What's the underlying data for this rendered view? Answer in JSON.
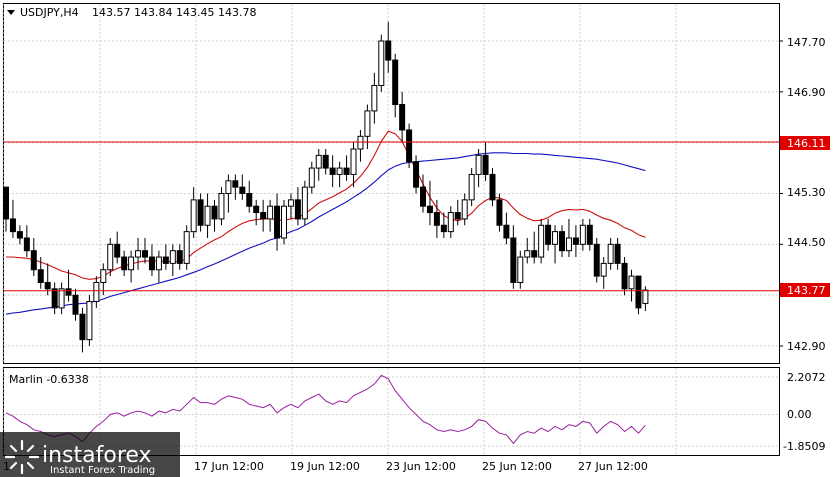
{
  "symbol": {
    "name": "USDJPY,H4",
    "ohlc": "143.57 143.84 143.45 143.78"
  },
  "main_price_labels": [
    "147.70",
    "146.90",
    "145.30",
    "144.50",
    "142.90"
  ],
  "hlines": [
    {
      "value": "146.11",
      "color": "#e00000"
    },
    {
      "value": "143.77",
      "color": "#e00000"
    }
  ],
  "indicator": {
    "name": "Marlin -0.6338",
    "levels": [
      "2.2072",
      "0.00",
      "-1.8509"
    ],
    "color": "#9b1fa3"
  },
  "time_labels": [
    "17 Jun 12:00",
    "19 Jun 12:00",
    "23 Jun 12:00",
    "25 Jun 12:00",
    "27 Jun 12:00"
  ],
  "time_edge_label": "1",
  "logo": {
    "brand": "instaforex",
    "tagline": "Instant Forex Trading"
  },
  "chart_data": {
    "type": "candlestick",
    "symbol": "USDJPY",
    "timeframe": "H4",
    "ylim": [
      142.6,
      148.1
    ],
    "series": [
      {
        "name": "candles",
        "ohlc": [
          [
            145.4,
            145.4,
            144.7,
            144.9
          ],
          [
            144.9,
            145.2,
            144.6,
            144.7
          ],
          [
            144.7,
            144.8,
            144.5,
            144.6
          ],
          [
            144.6,
            144.8,
            144.3,
            144.4
          ],
          [
            144.4,
            144.6,
            144.0,
            144.1
          ],
          [
            144.1,
            144.3,
            143.8,
            143.9
          ],
          [
            143.9,
            144.2,
            143.7,
            143.8
          ],
          [
            143.8,
            143.9,
            143.4,
            143.5
          ],
          [
            143.5,
            143.9,
            143.4,
            143.8
          ],
          [
            143.8,
            144.1,
            143.6,
            143.7
          ],
          [
            143.7,
            143.8,
            143.3,
            143.4
          ],
          [
            143.4,
            143.5,
            142.8,
            143.0
          ],
          [
            143.0,
            143.7,
            142.9,
            143.6
          ],
          [
            143.6,
            144.0,
            143.5,
            143.9
          ],
          [
            143.9,
            144.2,
            143.7,
            144.1
          ],
          [
            144.1,
            144.6,
            144.0,
            144.5
          ],
          [
            144.5,
            144.7,
            144.2,
            144.3
          ],
          [
            144.3,
            144.4,
            144.0,
            144.1
          ],
          [
            144.1,
            144.4,
            143.9,
            144.3
          ],
          [
            144.3,
            144.6,
            144.1,
            144.4
          ],
          [
            144.4,
            144.6,
            144.2,
            144.3
          ],
          [
            144.3,
            144.5,
            144.0,
            144.1
          ],
          [
            144.1,
            144.4,
            143.9,
            144.3
          ],
          [
            144.3,
            144.5,
            144.1,
            144.2
          ],
          [
            144.2,
            144.5,
            144.0,
            144.4
          ],
          [
            144.4,
            144.5,
            144.1,
            144.2
          ],
          [
            144.2,
            144.8,
            144.1,
            144.7
          ],
          [
            144.7,
            145.4,
            144.6,
            145.2
          ],
          [
            145.2,
            145.3,
            144.7,
            144.8
          ],
          [
            144.8,
            145.3,
            144.6,
            145.1
          ],
          [
            145.1,
            145.2,
            144.7,
            144.9
          ],
          [
            144.9,
            145.4,
            144.8,
            145.3
          ],
          [
            145.3,
            145.6,
            145.0,
            145.5
          ],
          [
            145.5,
            145.6,
            145.2,
            145.4
          ],
          [
            145.4,
            145.6,
            145.2,
            145.3
          ],
          [
            145.3,
            145.5,
            145.0,
            145.1
          ],
          [
            145.1,
            145.2,
            144.8,
            145.0
          ],
          [
            145.0,
            145.2,
            144.7,
            144.9
          ],
          [
            144.9,
            145.2,
            144.7,
            145.1
          ],
          [
            145.1,
            145.3,
            144.4,
            144.6
          ],
          [
            144.6,
            145.2,
            144.5,
            145.1
          ],
          [
            145.1,
            145.3,
            144.9,
            145.2
          ],
          [
            145.2,
            145.4,
            144.8,
            144.9
          ],
          [
            144.9,
            145.5,
            144.8,
            145.4
          ],
          [
            145.4,
            145.8,
            145.3,
            145.7
          ],
          [
            145.7,
            146.0,
            145.5,
            145.9
          ],
          [
            145.9,
            146.0,
            145.6,
            145.7
          ],
          [
            145.7,
            145.9,
            145.4,
            145.6
          ],
          [
            145.6,
            145.8,
            145.4,
            145.7
          ],
          [
            145.7,
            145.9,
            145.5,
            145.6
          ],
          [
            145.6,
            146.1,
            145.4,
            146.0
          ],
          [
            146.0,
            146.3,
            145.8,
            146.2
          ],
          [
            146.2,
            146.7,
            146.0,
            146.6
          ],
          [
            146.6,
            147.2,
            146.4,
            147.0
          ],
          [
            147.0,
            147.8,
            146.9,
            147.7
          ],
          [
            147.7,
            148.0,
            147.2,
            147.4
          ],
          [
            147.4,
            147.5,
            146.5,
            146.7
          ],
          [
            146.7,
            146.9,
            146.1,
            146.3
          ],
          [
            146.3,
            146.4,
            145.7,
            145.8
          ],
          [
            145.8,
            145.9,
            145.3,
            145.4
          ],
          [
            145.4,
            145.6,
            145.0,
            145.1
          ],
          [
            145.1,
            145.5,
            144.8,
            145.0
          ],
          [
            145.0,
            145.2,
            144.6,
            144.8
          ],
          [
            144.8,
            145.0,
            144.6,
            144.7
          ],
          [
            144.7,
            145.1,
            144.6,
            145.0
          ],
          [
            145.0,
            145.2,
            144.8,
            144.9
          ],
          [
            144.9,
            145.3,
            144.8,
            145.2
          ],
          [
            145.2,
            145.7,
            145.1,
            145.6
          ],
          [
            145.6,
            146.0,
            145.4,
            145.9
          ],
          [
            145.9,
            146.1,
            145.5,
            145.6
          ],
          [
            145.6,
            145.7,
            145.1,
            145.2
          ],
          [
            145.2,
            145.3,
            144.7,
            144.8
          ],
          [
            144.8,
            145.0,
            144.5,
            144.6
          ],
          [
            144.6,
            144.8,
            143.8,
            143.9
          ],
          [
            143.9,
            144.4,
            143.8,
            144.3
          ],
          [
            144.3,
            144.6,
            144.2,
            144.4
          ],
          [
            144.4,
            144.7,
            144.2,
            144.3
          ],
          [
            144.3,
            144.9,
            144.2,
            144.8
          ],
          [
            144.8,
            144.9,
            144.4,
            144.5
          ],
          [
            144.5,
            144.8,
            144.2,
            144.7
          ],
          [
            144.7,
            144.8,
            144.3,
            144.4
          ],
          [
            144.4,
            144.9,
            144.3,
            144.6
          ],
          [
            144.6,
            144.8,
            144.3,
            144.5
          ],
          [
            144.5,
            144.9,
            144.4,
            144.8
          ],
          [
            144.8,
            144.9,
            144.4,
            144.5
          ],
          [
            144.5,
            144.6,
            143.9,
            144.0
          ],
          [
            144.0,
            144.3,
            143.8,
            144.2
          ],
          [
            144.2,
            144.6,
            144.1,
            144.5
          ],
          [
            144.5,
            144.6,
            144.1,
            144.2
          ],
          [
            144.2,
            144.3,
            143.7,
            143.8
          ],
          [
            143.8,
            144.1,
            143.6,
            144.0
          ],
          [
            144.0,
            144.0,
            143.4,
            143.5
          ],
          [
            143.57,
            143.84,
            143.45,
            143.78
          ]
        ]
      },
      {
        "name": "ma_fast",
        "color": "#d01010",
        "values": [
          144.3,
          144.3,
          144.29,
          144.28,
          144.26,
          144.22,
          144.18,
          144.13,
          144.08,
          144.05,
          144.02,
          143.97,
          143.95,
          143.96,
          144.0,
          144.07,
          144.12,
          144.16,
          144.19,
          144.22,
          144.24,
          144.24,
          144.24,
          144.23,
          144.23,
          144.23,
          144.27,
          144.37,
          144.44,
          144.51,
          144.57,
          144.62,
          144.7,
          144.77,
          144.83,
          144.87,
          144.89,
          144.9,
          144.91,
          144.88,
          144.88,
          144.9,
          144.92,
          144.98,
          145.06,
          145.15,
          145.2,
          145.25,
          145.31,
          145.37,
          145.46,
          145.57,
          145.71,
          145.9,
          146.12,
          146.28,
          146.24,
          146.12,
          145.89,
          145.67,
          145.45,
          145.24,
          145.07,
          144.95,
          144.9,
          144.87,
          144.91,
          144.99,
          145.11,
          145.19,
          145.24,
          145.23,
          145.19,
          145.07,
          144.97,
          144.91,
          144.87,
          144.88,
          144.92,
          144.99,
          145.03,
          145.05,
          145.04,
          145.05,
          145.02,
          144.96,
          144.91,
          144.88,
          144.83,
          144.76,
          144.72,
          144.65,
          144.61
        ]
      },
      {
        "name": "ma_slow",
        "color": "#1010c0",
        "values": [
          143.4,
          143.42,
          143.43,
          143.45,
          143.47,
          143.48,
          143.5,
          143.51,
          143.53,
          143.55,
          143.56,
          143.57,
          143.58,
          143.61,
          143.64,
          143.68,
          143.71,
          143.74,
          143.77,
          143.8,
          143.83,
          143.86,
          143.89,
          143.92,
          143.95,
          143.98,
          144.02,
          144.06,
          144.1,
          144.15,
          144.19,
          144.24,
          144.29,
          144.34,
          144.39,
          144.44,
          144.48,
          144.52,
          144.57,
          144.6,
          144.65,
          144.7,
          144.74,
          144.8,
          144.86,
          144.93,
          144.99,
          145.05,
          145.11,
          145.17,
          145.24,
          145.31,
          145.39,
          145.48,
          145.58,
          145.67,
          145.73,
          145.77,
          145.79,
          145.8,
          145.81,
          145.82,
          145.83,
          145.84,
          145.85,
          145.86,
          145.88,
          145.9,
          145.92,
          145.93,
          145.94,
          145.94,
          145.94,
          145.93,
          145.93,
          145.93,
          145.92,
          145.92,
          145.91,
          145.9,
          145.89,
          145.88,
          145.87,
          145.86,
          145.85,
          145.84,
          145.82,
          145.8,
          145.78,
          145.75,
          145.72,
          145.69,
          145.66
        ]
      },
      {
        "name": "marlin",
        "color": "#9b1fa3",
        "values": [
          0.1,
          -0.1,
          -0.4,
          -0.6,
          -0.9,
          -1.0,
          -1.2,
          -1.3,
          -1.2,
          -1.1,
          -1.3,
          -1.6,
          -1.1,
          -0.7,
          -0.4,
          0.0,
          0.1,
          -0.1,
          0.1,
          0.2,
          0.1,
          -0.1,
          0.2,
          0.1,
          0.3,
          0.2,
          0.6,
          1.0,
          0.7,
          0.7,
          0.6,
          0.9,
          1.1,
          1.0,
          0.9,
          0.6,
          0.5,
          0.4,
          0.6,
          0.1,
          0.4,
          0.6,
          0.4,
          0.8,
          1.0,
          1.2,
          0.8,
          0.6,
          0.8,
          0.7,
          1.1,
          1.3,
          1.5,
          1.8,
          2.3,
          2.1,
          1.4,
          0.9,
          0.4,
          0.0,
          -0.4,
          -0.6,
          -0.9,
          -1.0,
          -0.9,
          -1.0,
          -0.9,
          -0.7,
          -0.3,
          -0.4,
          -0.8,
          -1.1,
          -1.2,
          -1.7,
          -1.2,
          -1.0,
          -1.1,
          -0.8,
          -1.0,
          -0.7,
          -0.9,
          -0.6,
          -0.7,
          -0.4,
          -0.5,
          -1.1,
          -0.7,
          -0.4,
          -0.6,
          -1.0,
          -0.7,
          -1.1,
          -0.63
        ]
      }
    ],
    "main_ylim": [
      142.6,
      148.1
    ],
    "indicator_ylim": [
      -2.5,
      2.5
    ],
    "grid": true
  }
}
